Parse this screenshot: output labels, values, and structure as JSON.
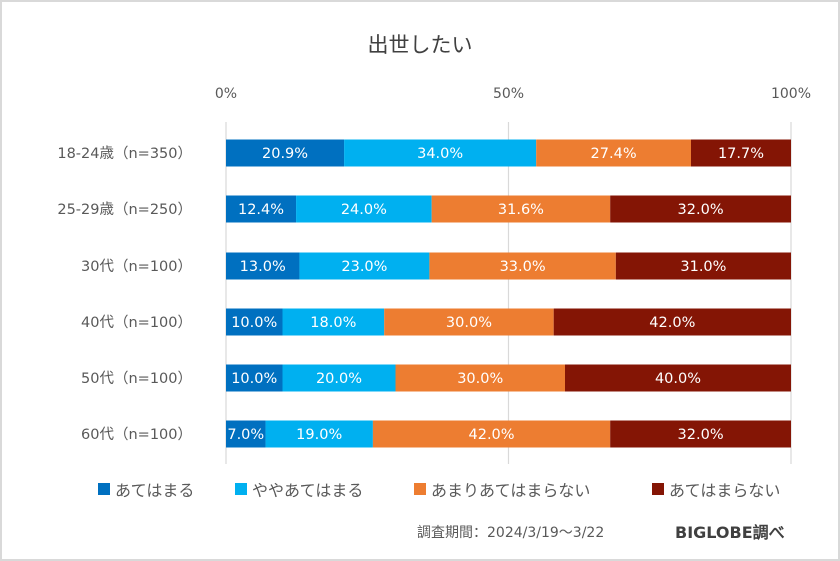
{
  "chart_data": {
    "type": "bar",
    "orientation": "horizontal",
    "stacked": true,
    "percent_stacked": true,
    "title": "出世したい",
    "xlabel": "",
    "ylabel": "",
    "xlim": [
      0,
      100
    ],
    "x_ticks": [
      "0%",
      "50%",
      "100%"
    ],
    "x_tick_values": [
      0,
      50,
      100
    ],
    "grid": true,
    "legend_position": "bottom",
    "categories": [
      "18-24歳（n=350）",
      "25-29歳（n=250）",
      "30代（n=100）",
      "40代（n=100）",
      "50代（n=100）",
      "60代（n=100）"
    ],
    "series": [
      {
        "name": "あてはまる",
        "color": "#0070c0",
        "values": [
          20.9,
          12.4,
          13.0,
          10.0,
          10.0,
          7.0
        ],
        "labels": [
          "20.9%",
          "12.4%",
          "13.0%",
          "10.0%",
          "10.0%",
          "7.0%"
        ]
      },
      {
        "name": "ややあてはまる",
        "color": "#00b0f0",
        "values": [
          34.0,
          24.0,
          23.0,
          18.0,
          20.0,
          19.0
        ],
        "labels": [
          "34.0%",
          "24.0%",
          "23.0%",
          "18.0%",
          "20.0%",
          "19.0%"
        ]
      },
      {
        "name": "あまりあてはまらない",
        "color": "#ed7d31",
        "values": [
          27.4,
          31.6,
          33.0,
          30.0,
          30.0,
          42.0
        ],
        "labels": [
          "27.4%",
          "31.6%",
          "33.0%",
          "30.0%",
          "30.0%",
          "42.0%"
        ]
      },
      {
        "name": "あてはまらない",
        "color": "#841505",
        "values": [
          17.7,
          32.0,
          31.0,
          42.0,
          40.0,
          32.0
        ],
        "labels": [
          "17.7%",
          "32.0%",
          "31.0%",
          "42.0%",
          "40.0%",
          "32.0%"
        ]
      }
    ]
  },
  "footer": {
    "survey_period": "調査期間：2024/3/19～3/22",
    "source": "BIGLOBE調べ"
  }
}
